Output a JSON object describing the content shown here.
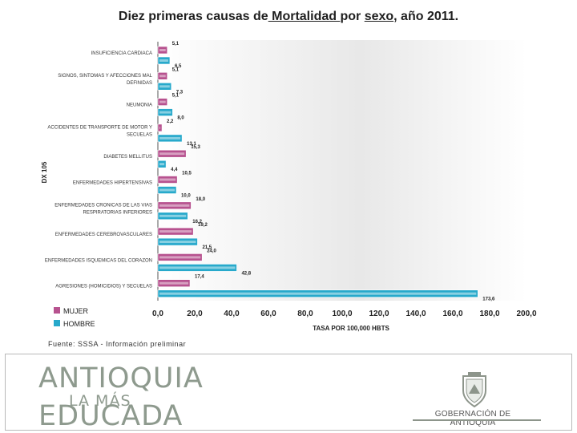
{
  "page": {
    "title_prefix": "Diez primeras causas de",
    "title_mortalidad": " Mortalidad ",
    "title_por": "por",
    "title_sexo": "sexo",
    "title_suffix": ", año 2011.",
    "fuente": "Fuente: SSSA - Información preliminar",
    "logo_line1": "ANTIOQUIA",
    "logo_line2": "LA MÁS",
    "logo_line3": "EDUCADA",
    "gob_text": "GOBERNACIÓN DE ANTIOQUIA"
  },
  "colors": {
    "mujer": "#b7528f",
    "hombre": "#27a9cb",
    "footer_gray": "#8e9a8e"
  },
  "chart_data": {
    "type": "bar",
    "orientation": "horizontal",
    "ylabel": "DX 105",
    "xlabel": "TASA POR 100,000 HBTS",
    "xlim": [
      0,
      200
    ],
    "xticks": [
      "0,0",
      "20,0",
      "40,0",
      "60,0",
      "80,0",
      "100,0",
      "120,0",
      "140,0",
      "160,0",
      "180,0",
      "200,0"
    ],
    "categories": [
      "INSUFICIENCIA CARDIACA",
      "SIGNOS, SINTOMAS Y AFECCIONES MAL DEFINIDAS",
      "NEUMONIA",
      "ACCIDENTES DE TRANSPORTE DE MOTOR Y SECUELAS",
      "DIABETES MELLITUS",
      "ENFERMEDADES HIPERTENSIVAS",
      "ENFERMEDADES CRONICAS DE LAS VIAS RESPIRATORIAS INFERIORES",
      "ENFERMEDADES CEREBROVASCULARES",
      "ENFERMEDADES ISQUEMICAS DEL CORAZON",
      "AGRESIONES (HOMICIDIOS) Y SECUELAS"
    ],
    "series": [
      {
        "name": "MUJER",
        "values": [
          5.1,
          5.1,
          5.1,
          2.2,
          15.3,
          10.5,
          18.0,
          19.2,
          24.0,
          17.4
        ],
        "labels": [
          "5,1",
          "5,1",
          "5,1",
          "2,2",
          "15,3",
          "10,5",
          "18,0",
          "19,2",
          "24,0",
          "17,4"
        ]
      },
      {
        "name": "HOMBRE",
        "values": [
          6.5,
          7.3,
          8.0,
          13.1,
          4.4,
          10.0,
          16.2,
          21.5,
          42.8,
          173.6
        ],
        "labels": [
          "6,5",
          "7,3",
          "8,0",
          "13,1",
          "4,4",
          "10,0",
          "16,2",
          "21,5",
          "42,8",
          "173,6"
        ]
      }
    ],
    "legend_position": "bottom-left"
  }
}
